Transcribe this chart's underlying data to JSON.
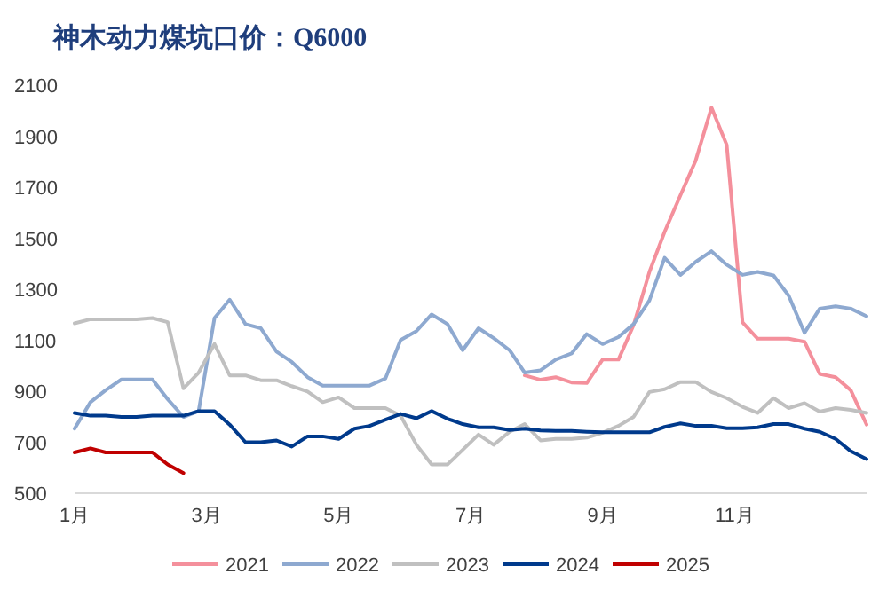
{
  "chart_data": {
    "type": "line",
    "title": "神木动力煤坑口价：Q6000",
    "x": [
      1,
      1.24,
      1.47,
      1.71,
      1.94,
      2.18,
      2.41,
      2.65,
      2.88,
      3.12,
      3.35,
      3.59,
      3.82,
      4.06,
      4.29,
      4.53,
      4.76,
      5.0,
      5.24,
      5.47,
      5.71,
      5.94,
      6.18,
      6.41,
      6.65,
      6.88,
      7.12,
      7.35,
      7.59,
      7.82,
      8.06,
      8.29,
      8.53,
      8.76,
      9.0,
      9.24,
      9.47,
      9.71,
      9.94,
      10.18,
      10.41,
      10.65,
      10.88,
      11.12,
      11.35,
      11.59,
      11.82,
      12.06,
      12.29,
      12.53,
      12.76,
      13.0
    ],
    "series": [
      {
        "name": "2021",
        "color": "#f4909c",
        "values": [
          null,
          null,
          null,
          null,
          null,
          null,
          null,
          null,
          null,
          null,
          null,
          null,
          null,
          null,
          null,
          null,
          null,
          null,
          null,
          null,
          null,
          null,
          null,
          null,
          null,
          null,
          null,
          null,
          null,
          962,
          945,
          955,
          934,
          932,
          1024,
          1024,
          1159,
          1368,
          1525,
          1669,
          1804,
          2012,
          1866,
          1170,
          1106,
          1106,
          1106,
          1094,
          968,
          955,
          904,
          769
        ]
      },
      {
        "name": "2022",
        "color": "#8ea9d0",
        "values": [
          753,
          857,
          904,
          946,
          946,
          946,
          869,
          799,
          822,
          1187,
          1259,
          1163,
          1147,
          1055,
          1015,
          955,
          922,
          922,
          922,
          922,
          950,
          1101,
          1136,
          1201,
          1163,
          1061,
          1147,
          1108,
          1061,
          973,
          982,
          1024,
          1048,
          1124,
          1085,
          1112,
          1163,
          1256,
          1423,
          1356,
          1407,
          1449,
          1396,
          1356,
          1368,
          1354,
          1275,
          1129,
          1224,
          1233,
          1224,
          1194
        ]
      },
      {
        "name": "2023",
        "color": "#c0c0c0",
        "values": [
          1166,
          1182,
          1182,
          1182,
          1182,
          1187,
          1171,
          911,
          973,
          1085,
          962,
          962,
          943,
          943,
          920,
          899,
          857,
          876,
          834,
          834,
          834,
          804,
          690,
          613,
          613,
          670,
          730,
          690,
          741,
          771,
          707,
          713,
          713,
          718,
          737,
          764,
          799,
          897,
          908,
          936,
          936,
          897,
          873,
          839,
          815,
          873,
          834,
          853,
          820,
          834,
          827,
          815
        ]
      },
      {
        "name": "2024",
        "color": "#003a8c",
        "values": [
          815,
          804,
          804,
          799,
          799,
          804,
          804,
          804,
          822,
          822,
          769,
          700,
          700,
          707,
          683,
          723,
          723,
          713,
          753,
          764,
          788,
          811,
          794,
          822,
          792,
          771,
          758,
          758,
          748,
          753,
          746,
          744,
          744,
          741,
          739,
          739,
          739,
          739,
          760,
          774,
          764,
          764,
          755,
          755,
          758,
          771,
          771,
          753,
          741,
          713,
          665,
          634
        ]
      },
      {
        "name": "2025",
        "color": "#c00000",
        "values": [
          660,
          676,
          660,
          660,
          660,
          660,
          613,
          579,
          null,
          null,
          null,
          null,
          null,
          null,
          null,
          null,
          null,
          null,
          null,
          null,
          null,
          null,
          null,
          null,
          null,
          null,
          null,
          null,
          null,
          null,
          null,
          null,
          null,
          null,
          null,
          null,
          null,
          null,
          null,
          null,
          null,
          null,
          null,
          null,
          null,
          null,
          null,
          null,
          null,
          null,
          null,
          null
        ]
      }
    ],
    "xlim": [
      1,
      13
    ],
    "ylim": [
      500,
      2100
    ],
    "xticks": [
      {
        "value": 1,
        "label": "1月"
      },
      {
        "value": 3,
        "label": "3月"
      },
      {
        "value": 5,
        "label": "5月"
      },
      {
        "value": 7,
        "label": "7月"
      },
      {
        "value": 9,
        "label": "9月"
      },
      {
        "value": 11,
        "label": "11月"
      }
    ],
    "yticks": [
      500,
      700,
      900,
      1100,
      1300,
      1500,
      1700,
      1900,
      2100
    ],
    "legend": "bottom"
  }
}
